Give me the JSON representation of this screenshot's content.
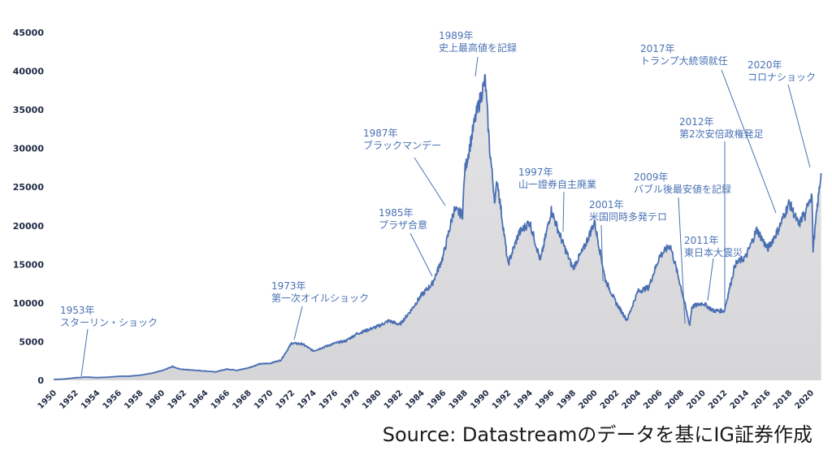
{
  "chart_data": {
    "type": "area",
    "title": "",
    "xlabel": "",
    "ylabel": "",
    "xlim": [
      1950,
      2020
    ],
    "ylim": [
      0,
      45000
    ],
    "grid": false,
    "legend": "none",
    "colors": {
      "line": "#4a6fb3",
      "fill": "#d9d9db",
      "annotation": "#4a72b4",
      "axis_text": "#1f2a44"
    },
    "y_ticks": [
      0,
      5000,
      10000,
      15000,
      20000,
      25000,
      30000,
      35000,
      40000,
      45000
    ],
    "x_ticks": [
      "1950",
      "1952",
      "1954",
      "1956",
      "1958",
      "1960",
      "1962",
      "1964",
      "1966",
      "1968",
      "1970",
      "1972",
      "1974",
      "1976",
      "1978",
      "1980",
      "1982",
      "1984",
      "1986",
      "1988",
      "1990",
      "1992",
      "1994",
      "1996",
      "1998",
      "2000",
      "2002",
      "2004",
      "2006",
      "2008",
      "2010",
      "2012",
      "2014",
      "2016",
      "2018",
      "2020"
    ],
    "series": [
      {
        "values": [
          [
            1950,
            100
          ],
          [
            1951,
            170
          ],
          [
            1952,
            330
          ],
          [
            1953,
            420
          ],
          [
            1954,
            350
          ],
          [
            1955,
            400
          ],
          [
            1956,
            520
          ],
          [
            1957,
            540
          ],
          [
            1958,
            650
          ],
          [
            1959,
            900
          ],
          [
            1960,
            1250
          ],
          [
            1961,
            1800
          ],
          [
            1961.5,
            1500
          ],
          [
            1962,
            1400
          ],
          [
            1963,
            1300
          ],
          [
            1964,
            1200
          ],
          [
            1965,
            1100
          ],
          [
            1966,
            1450
          ],
          [
            1967,
            1300
          ],
          [
            1968,
            1600
          ],
          [
            1969,
            2100
          ],
          [
            1970,
            2200
          ],
          [
            1971,
            2600
          ],
          [
            1972,
            4800
          ],
          [
            1973,
            4700
          ],
          [
            1974,
            3800
          ],
          [
            1975,
            4300
          ],
          [
            1976,
            4800
          ],
          [
            1977,
            5100
          ],
          [
            1978,
            6000
          ],
          [
            1979,
            6500
          ],
          [
            1980,
            7000
          ],
          [
            1981,
            7700
          ],
          [
            1982,
            7200
          ],
          [
            1983,
            9000
          ],
          [
            1984,
            11000
          ],
          [
            1985,
            12500
          ],
          [
            1986,
            16000
          ],
          [
            1987,
            22000
          ],
          [
            1987.8,
            21500
          ],
          [
            1988,
            27000
          ],
          [
            1989,
            34000
          ],
          [
            1989.9,
            38900
          ],
          [
            1990.3,
            30000
          ],
          [
            1990.8,
            23000
          ],
          [
            1991,
            26000
          ],
          [
            1992,
            15000
          ],
          [
            1993,
            19000
          ],
          [
            1994,
            20500
          ],
          [
            1995,
            15500
          ],
          [
            1996,
            22000
          ],
          [
            1997,
            18000
          ],
          [
            1998,
            14500
          ],
          [
            1999,
            17000
          ],
          [
            2000,
            20500
          ],
          [
            2001,
            13000
          ],
          [
            2002,
            10000
          ],
          [
            2003,
            7800
          ],
          [
            2004,
            11500
          ],
          [
            2005,
            12000
          ],
          [
            2006,
            16000
          ],
          [
            2007,
            17500
          ],
          [
            2008,
            12000
          ],
          [
            2008.8,
            7100
          ],
          [
            2009,
            9500
          ],
          [
            2010,
            10000
          ],
          [
            2011,
            9000
          ],
          [
            2012,
            9000
          ],
          [
            2013,
            15000
          ],
          [
            2014,
            16000
          ],
          [
            2015,
            19500
          ],
          [
            2016,
            17000
          ],
          [
            2017,
            19500
          ],
          [
            2018,
            23000
          ],
          [
            2018.9,
            20000
          ],
          [
            2019.3,
            21500
          ],
          [
            2019.5,
            21000
          ],
          [
            2019.7,
            23000
          ],
          [
            2020.1,
            24000
          ],
          [
            2020.2,
            17000
          ],
          [
            2020.6,
            22500
          ],
          [
            2020.95,
            26800
          ]
        ]
      }
    ],
    "annotations": [
      {
        "year": "1953年",
        "event": "スターリン・ショック"
      },
      {
        "year": "1973年",
        "event": "第一次オイルショック"
      },
      {
        "year": "1985年",
        "event": "プラザ合意"
      },
      {
        "year": "1987年",
        "event": "ブラックマンデー"
      },
      {
        "year": "1989年",
        "event": "史上最高値を記録"
      },
      {
        "year": "1997年",
        "event": "山一證券自主廃業"
      },
      {
        "year": "2001年",
        "event": "米国同時多発テロ"
      },
      {
        "year": "2009年",
        "event": "バブル後最安値を記録"
      },
      {
        "year": "2011年",
        "event": "東日本大震災"
      },
      {
        "year": "2012年",
        "event": "第2次安倍政権発足"
      },
      {
        "year": "2017年",
        "event": "トランプ大統領就任"
      },
      {
        "year": "2020年",
        "event": "コロナショック"
      }
    ]
  },
  "source_note": "Source: Datastreamのデータを基にIG証券作成"
}
